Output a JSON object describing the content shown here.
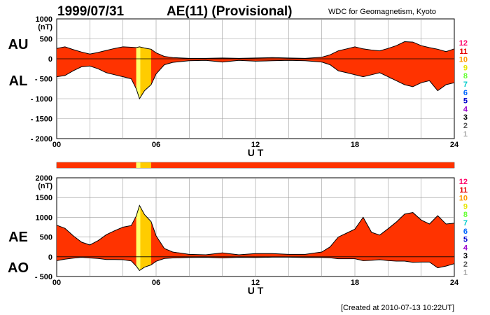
{
  "header": {
    "date": "1999/07/31",
    "title": "AE(11) (Provisional)",
    "source": "WDC for Geomagnetism, Kyoto"
  },
  "footer": {
    "created": "[Created at 2010-07-13 10:22UT]"
  },
  "station_count_legend": [
    "12",
    "11",
    "10",
    "9",
    "8",
    "7",
    "6",
    "5",
    "4",
    "3",
    "2",
    "1"
  ],
  "station_count_colors": [
    "#ff0066",
    "#e60000",
    "#ff9900",
    "#e6e600",
    "#66ff33",
    "#00cccc",
    "#0066ff",
    "#0000cc",
    "#9900cc",
    "#000000",
    "#555555",
    "#aaaaaa"
  ],
  "colors": {
    "band": "#ff3300",
    "reduced_a": "#ffcc00",
    "reduced_b": "#ffff66",
    "grid": "#999999"
  },
  "chart_data": [
    {
      "type": "area",
      "panel": "top",
      "unit_label": "(nT)",
      "xlabel": "U T",
      "x_ticks": [
        "00",
        "06",
        "12",
        "18",
        "24"
      ],
      "ylim": [
        -2000,
        1000
      ],
      "y_ticks": [
        "1000",
        "500",
        "0",
        "- 500",
        "- 1000",
        "- 1500",
        "- 2000"
      ],
      "y_tick_values": [
        1000,
        500,
        0,
        -500,
        -1000,
        -1500,
        -2000
      ],
      "series": [
        {
          "name": "AU",
          "x_hours": [
            0,
            0.5,
            1,
            1.5,
            2,
            2.5,
            3,
            3.5,
            4,
            4.5,
            4.8,
            5,
            5.3,
            5.7,
            6,
            6.5,
            7,
            8,
            9,
            10,
            11,
            12,
            13,
            14,
            15,
            16,
            16.5,
            17,
            17.5,
            18,
            18.5,
            19,
            19.5,
            20,
            20.5,
            21,
            21.5,
            22,
            22.5,
            23,
            23.5,
            24
          ],
          "values": [
            260,
            300,
            230,
            170,
            120,
            160,
            210,
            260,
            300,
            290,
            280,
            300,
            270,
            240,
            150,
            60,
            30,
            10,
            10,
            20,
            10,
            20,
            30,
            20,
            10,
            40,
            100,
            200,
            250,
            300,
            250,
            220,
            200,
            260,
            330,
            430,
            420,
            330,
            280,
            240,
            180,
            250
          ]
        },
        {
          "name": "AL",
          "x_hours": [
            0,
            0.5,
            1,
            1.5,
            2,
            2.5,
            3,
            3.5,
            4,
            4.5,
            4.8,
            5,
            5.3,
            5.7,
            6,
            6.5,
            7,
            8,
            9,
            10,
            11,
            12,
            13,
            14,
            15,
            16,
            16.5,
            17,
            17.5,
            18,
            18.5,
            19,
            19.5,
            20,
            20.5,
            21,
            21.5,
            22,
            22.5,
            23,
            23.5,
            24
          ],
          "values": [
            -450,
            -420,
            -300,
            -200,
            -180,
            -250,
            -350,
            -400,
            -450,
            -500,
            -750,
            -1000,
            -800,
            -650,
            -380,
            -150,
            -90,
            -50,
            -40,
            -80,
            -40,
            -60,
            -50,
            -40,
            -50,
            -80,
            -150,
            -300,
            -350,
            -400,
            -450,
            -400,
            -350,
            -450,
            -550,
            -650,
            -700,
            -600,
            -550,
            -800,
            -650,
            -600
          ]
        }
      ],
      "panel_labels": [
        "AU",
        "AL"
      ],
      "grid": true
    },
    {
      "type": "area",
      "panel": "bottom",
      "unit_label": "(nT)",
      "xlabel": "U T",
      "x_ticks": [
        "00",
        "06",
        "12",
        "18",
        "24"
      ],
      "ylim": [
        -500,
        2000
      ],
      "y_ticks": [
        "2000",
        "1500",
        "1000",
        "500",
        "0",
        "- 500"
      ],
      "y_tick_values": [
        2000,
        1500,
        1000,
        500,
        0,
        -500
      ],
      "series": [
        {
          "name": "AE",
          "x_hours": [
            0,
            0.5,
            1,
            1.5,
            2,
            2.5,
            3,
            3.5,
            4,
            4.5,
            4.8,
            5,
            5.3,
            5.7,
            6,
            6.5,
            7,
            8,
            9,
            10,
            11,
            12,
            13,
            14,
            15,
            16,
            16.5,
            17,
            17.5,
            18,
            18.5,
            19,
            19.5,
            20,
            20.5,
            21,
            21.5,
            22,
            22.5,
            23,
            23.5,
            24
          ],
          "values": [
            800,
            720,
            530,
            370,
            300,
            410,
            560,
            660,
            750,
            790,
            1030,
            1300,
            1070,
            890,
            530,
            210,
            120,
            60,
            50,
            100,
            50,
            80,
            80,
            60,
            60,
            120,
            250,
            500,
            600,
            700,
            1000,
            620,
            550,
            710,
            880,
            1080,
            1120,
            930,
            830,
            1040,
            830,
            850
          ]
        },
        {
          "name": "AO",
          "x_hours": [
            0,
            0.5,
            1,
            1.5,
            2,
            2.5,
            3,
            3.5,
            4,
            4.5,
            4.8,
            5,
            5.3,
            5.7,
            6,
            6.5,
            7,
            8,
            9,
            10,
            11,
            12,
            13,
            14,
            15,
            16,
            16.5,
            17,
            17.5,
            18,
            18.5,
            19,
            19.5,
            20,
            20.5,
            21,
            21.5,
            22,
            22.5,
            23,
            23.5,
            24
          ],
          "values": [
            -100,
            -60,
            -35,
            -15,
            -30,
            -45,
            -70,
            -70,
            -75,
            -105,
            -235,
            -350,
            -265,
            -205,
            -115,
            -45,
            -30,
            -20,
            -15,
            -30,
            -15,
            -20,
            -10,
            -10,
            -20,
            -20,
            -25,
            -50,
            -50,
            -50,
            -100,
            -90,
            -75,
            -95,
            -110,
            -110,
            -140,
            -135,
            -135,
            -280,
            -235,
            -175
          ]
        }
      ],
      "panel_labels": [
        "AE",
        "AO"
      ],
      "grid": true
    }
  ],
  "station_bar": {
    "segments": [
      {
        "start_hour": 0,
        "end_hour": 4.8,
        "color": "#ff3300"
      },
      {
        "start_hour": 4.8,
        "end_hour": 5.05,
        "color": "#ffff66"
      },
      {
        "start_hour": 5.05,
        "end_hour": 5.7,
        "color": "#ffcc00"
      },
      {
        "start_hour": 5.7,
        "end_hour": 24,
        "color": "#ff3300"
      }
    ]
  }
}
